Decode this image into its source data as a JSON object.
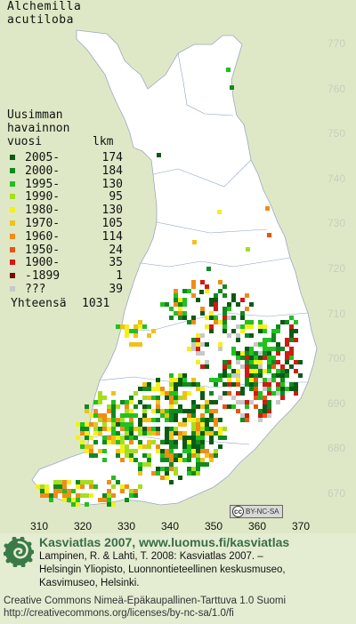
{
  "title": [
    "Alchemilla",
    "acutiloba"
  ],
  "legend": {
    "heading": [
      "Uusimman",
      "havainnon"
    ],
    "col_year": "vuosi",
    "col_count": "lkm",
    "entries": [
      {
        "label": "2005-",
        "count": "174",
        "color": "#0b5a14"
      },
      {
        "label": "2000-",
        "count": "184",
        "color": "#0f8a1e"
      },
      {
        "label": "1995-",
        "count": "130",
        "color": "#22c020"
      },
      {
        "label": "1990-",
        "count": "95",
        "color": "#a6de1e"
      },
      {
        "label": "1980-",
        "count": "130",
        "color": "#f4f01a"
      },
      {
        "label": "1970-",
        "count": "105",
        "color": "#f2c01a"
      },
      {
        "label": "1960-",
        "count": "114",
        "color": "#f08c18"
      },
      {
        "label": "1950-",
        "count": "24",
        "color": "#e85412"
      },
      {
        "label": "1900-",
        "count": "35",
        "color": "#d01a12"
      },
      {
        "label": "-1899",
        "count": "1",
        "color": "#7a0c08"
      },
      {
        "label": "???",
        "count": "39",
        "color": "#c8c8c8"
      }
    ],
    "total_label": "Yhteensä",
    "total_count": "1031"
  },
  "axis": {
    "y_ticks": [
      "770",
      "760",
      "750",
      "740",
      "730",
      "720",
      "710",
      "700",
      "690",
      "680",
      "670"
    ],
    "x_ticks": [
      "310",
      "320",
      "330",
      "340",
      "350",
      "360",
      "370"
    ]
  },
  "badge": {
    "cc": "cc",
    "text": "BY-NC-SA"
  },
  "footer": {
    "atlas": "Kasviatlas 2007, www.luomus.fi/kasviatlas",
    "citation": [
      "Lampinen, R. & Lahti, T. 2008: Kasviatlas 2007. –",
      "Helsingin Yliopisto, Luonnontieteellinen keskusmuseo,",
      "Kasvimuseo, Helsinki."
    ],
    "license": [
      "Creative Commons Nimeä-Epäkaupallinen-Tarttuva 1.0 Suomi",
      "http://creativecommons.org/licenses/by-nc-sa/1.0/fi"
    ]
  },
  "colors": {
    "land": "#ffffff",
    "sea": "#dfe8c6",
    "border": "#6a8ab0",
    "accent": "#3a6e44"
  }
}
